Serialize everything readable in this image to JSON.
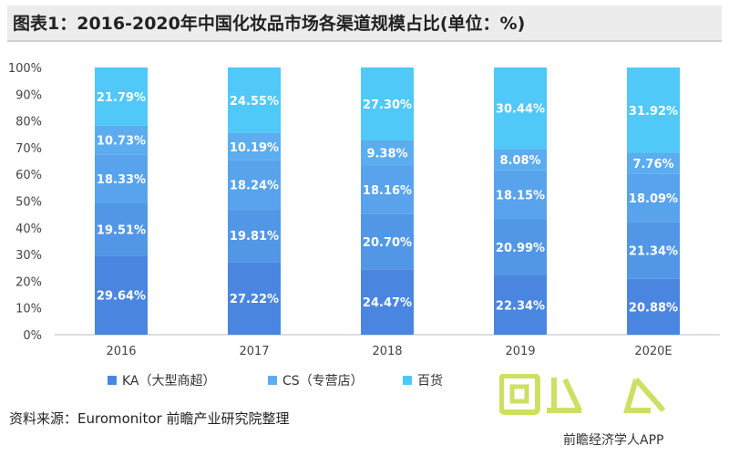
{
  "title": "图表1：2016-2020年中国化妆品市场各渠道规模占比(单位：%)",
  "source": "资料来源：Euromonitor 前瞻产业研究院整理",
  "watermark_brand": "前瞻经济学人APP",
  "colors": {
    "KA": "#4a86e0",
    "CS": "#5cacf0",
    "百货": "#50c8f8"
  },
  "chart_data": {
    "type": "bar",
    "stacked": true,
    "percent": true,
    "categories": [
      "2016",
      "2017",
      "2018",
      "2019",
      "2020E"
    ],
    "ylim": [
      0,
      100
    ],
    "yticks": [
      "0%",
      "10%",
      "20%",
      "30%",
      "40%",
      "50%",
      "60%",
      "70%",
      "80%",
      "90%",
      "100%"
    ],
    "series": [
      {
        "name": "KA（大型商超）",
        "values": [
          29.64,
          27.22,
          24.47,
          22.34,
          20.88
        ],
        "labels": [
          "29.64%",
          "27.22%",
          "24.47%",
          "22.34%",
          "20.88%"
        ]
      },
      {
        "name": "",
        "values": [
          19.51,
          19.81,
          20.7,
          20.99,
          21.34
        ],
        "labels": [
          "19.51%",
          "19.81%",
          "20.70%",
          "20.99%",
          "21.34%"
        ]
      },
      {
        "name": "",
        "values": [
          18.33,
          18.24,
          18.16,
          18.15,
          18.09
        ],
        "labels": [
          "18.33%",
          "18.24%",
          "18.16%",
          "18.15%",
          "18.09%"
        ]
      },
      {
        "name": "CS（专营店）",
        "values": [
          10.73,
          10.19,
          9.38,
          8.08,
          7.76
        ],
        "labels": [
          "10.73%",
          "10.19%",
          "9.38%",
          "8.08%",
          "7.76%"
        ]
      },
      {
        "name": "百货",
        "values": [
          21.79,
          24.55,
          27.3,
          30.44,
          31.92
        ],
        "labels": [
          "21.79%",
          "24.55%",
          "27.30%",
          "30.44%",
          "31.92%"
        ]
      }
    ],
    "legend": [
      "KA（大型商超）",
      "CS（专营店）",
      "百货"
    ],
    "legend_position": "bottom"
  }
}
